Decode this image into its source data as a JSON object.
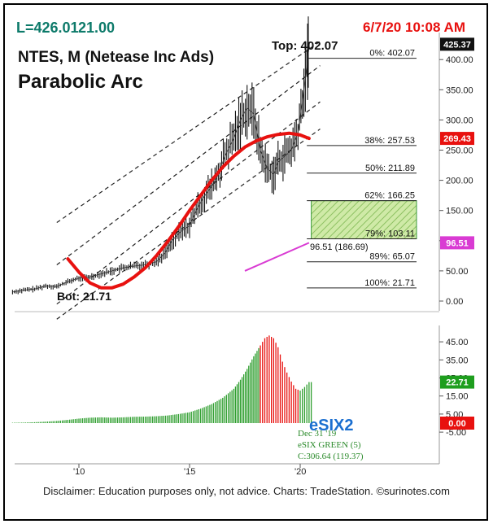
{
  "header": {
    "last_price": "L=426.01",
    "last_change": "21.00",
    "date_time": "6/7/20 10:08 AM",
    "symbol_title": "NTES, M (Netease Inc Ads)",
    "study_title": "Parabolic Arc",
    "colors": {
      "teal": "#0d7a6a",
      "red": "#e8110f"
    }
  },
  "annotations": {
    "top_label": "Top: 402.07",
    "bot_label": "Bot: 21.71",
    "pink_label": "96.51 (186.69)"
  },
  "fib_levels": [
    {
      "label": "0%: 402.07",
      "value": 402.07
    },
    {
      "label": "38%: 257.53",
      "value": 257.53
    },
    {
      "label": "50%: 211.89",
      "value": 211.89
    },
    {
      "label": "62%: 166.25",
      "value": 166.25
    },
    {
      "label": "79%: 103.11",
      "value": 103.11
    },
    {
      "label": "89%: 65.07",
      "value": 65.07
    },
    {
      "label": "100%: 21.71",
      "value": 21.71
    }
  ],
  "price_badges": [
    {
      "text": "425.37",
      "value": 425.37,
      "bg": "#111111",
      "color": "#ffffff"
    },
    {
      "text": "269.43",
      "value": 269.43,
      "bg": "#e8110f",
      "color": "#ffffff"
    },
    {
      "text": "96.51",
      "value": 96.51,
      "bg": "#d93bd3",
      "color": "#ffffff"
    }
  ],
  "indicator": {
    "name": "eSIX2",
    "info_date": "Dec 31 '19",
    "info_name": "eSIX GREEN (5)",
    "info_close": "C:306.64 (119.37)",
    "badges": [
      {
        "text": "22.71",
        "value": 22.71,
        "bg": "#1e9e1e",
        "color": "#ffffff"
      },
      {
        "text": "0.00",
        "value": 0.0,
        "bg": "#e8110f",
        "color": "#ffffff"
      }
    ]
  },
  "disclaimer": "Disclaimer: Education purposes only, not advice.  Charts: TradeStation.    ©surinotes.com",
  "chart_data": [
    {
      "type": "line",
      "title": "NTES, M (Netease Inc Ads)",
      "subtitle": "Parabolic Arc",
      "xlabel": "",
      "ylabel": "",
      "x_ticks": [
        "'10",
        "'15",
        "'20"
      ],
      "y_ticks": [
        0,
        50,
        100,
        150,
        200,
        250,
        300,
        350,
        400
      ],
      "ylim": [
        -30,
        440
      ],
      "xlim": [
        2006.9,
        2020.8
      ],
      "grid": false,
      "series": [
        {
          "values_x": [
            2007.0,
            2007.5,
            2008.0,
            2008.5,
            2009.0,
            2009.5,
            2010.0,
            2010.5,
            2011.0,
            2011.5,
            2012.0,
            2012.5,
            2013.0,
            2013.5,
            2013.9,
            2014.2,
            2014.6,
            2015.0,
            2015.3,
            2015.6,
            2016.0,
            2016.3,
            2016.6,
            2017.0,
            2017.3,
            2017.6,
            2017.9,
            2018.2,
            2018.5,
            2018.8,
            2019.0,
            2019.3,
            2019.6,
            2019.9,
            2020.1,
            2020.3,
            2020.4
          ],
          "values": [
            15,
            18,
            20,
            25,
            24,
            32,
            38,
            40,
            45,
            50,
            55,
            58,
            60,
            65,
            80,
            100,
            115,
            125,
            150,
            170,
            190,
            210,
            240,
            270,
            300,
            320,
            310,
            250,
            220,
            210,
            230,
            240,
            250,
            280,
            330,
            390,
            420
          ]
        },
        {
          "name": "96.51 (186.69)",
          "values_x": [
            2017.5,
            2020.4
          ],
          "values": [
            50,
            96.51
          ]
        }
      ],
      "parabolic_arc": {
        "values_x": [
          2009.5,
          2010.0,
          2010.5,
          2011.0,
          2011.5,
          2012.0,
          2012.5,
          2013.0,
          2013.5,
          2014.0,
          2014.5,
          2015.0,
          2015.5,
          2016.0,
          2016.5,
          2017.0,
          2017.5,
          2018.0,
          2018.5,
          2019.0,
          2019.5,
          2020.0,
          2020.4
        ],
        "values": [
          70,
          48,
          30,
          22,
          22,
          28,
          40,
          55,
          75,
          98,
          123,
          150,
          175,
          200,
          222,
          240,
          255,
          265,
          272,
          276,
          278,
          275,
          269.43
        ]
      }
    },
    {
      "type": "bar",
      "title": "eSIX2",
      "y_ticks": [
        -5,
        5,
        15,
        25,
        35,
        45
      ],
      "ylim": [
        -9,
        52
      ],
      "x": [
        2007.0,
        2007.5,
        2008.0,
        2008.5,
        2009.0,
        2009.5,
        2010.0,
        2010.5,
        2011.0,
        2011.5,
        2012.0,
        2012.5,
        2013.0,
        2013.5,
        2014.0,
        2014.5,
        2015.0,
        2015.5,
        2016.0,
        2016.5,
        2017.0,
        2017.3,
        2017.6,
        2017.9,
        2018.2,
        2018.4,
        2018.6,
        2018.8,
        2019.0,
        2019.2,
        2019.4,
        2019.6,
        2019.8,
        2020.0,
        2020.2,
        2020.4
      ],
      "values": [
        0.2,
        0.3,
        0.5,
        0.8,
        1.2,
        1.8,
        2.5,
        3.0,
        3.2,
        3.0,
        3.2,
        3.5,
        3.6,
        3.8,
        4.2,
        5.0,
        6.0,
        8.0,
        10.5,
        14.0,
        19.0,
        24.0,
        30.0,
        37.0,
        43.0,
        47.0,
        48.5,
        47.0,
        42.0,
        34.0,
        28.0,
        23.0,
        19.0,
        18.0,
        20.0,
        22.71
      ],
      "colors": [
        "green",
        "green",
        "green",
        "green",
        "green",
        "green",
        "green",
        "green",
        "green",
        "green",
        "green",
        "green",
        "green",
        "green",
        "green",
        "green",
        "green",
        "green",
        "green",
        "green",
        "green",
        "green",
        "green",
        "green",
        "red",
        "red",
        "red",
        "red",
        "red",
        "red",
        "red",
        "red",
        "red",
        "green",
        "green",
        "green"
      ]
    }
  ]
}
